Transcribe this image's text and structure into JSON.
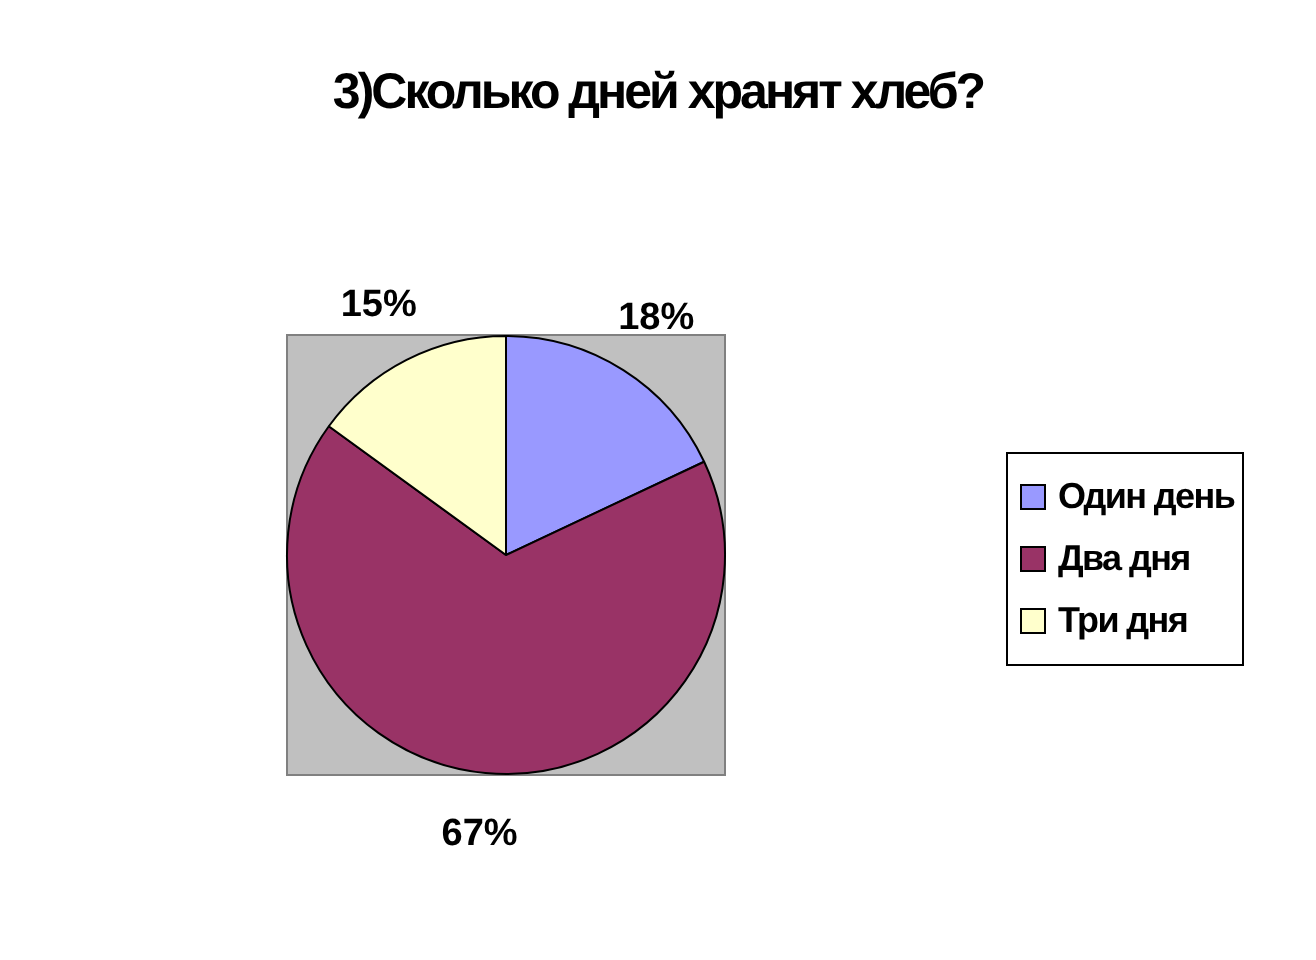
{
  "chart_data": {
    "type": "pie",
    "title": "3)Сколько дней хранят хлеб?",
    "categories": [
      "Один день",
      "Два дня",
      "Три дня"
    ],
    "values": [
      18,
      67,
      15
    ],
    "colors": [
      "#9999ff",
      "#993366",
      "#ffffcc"
    ],
    "value_labels": [
      "18%",
      "67%",
      "15%"
    ],
    "legend": "right"
  }
}
